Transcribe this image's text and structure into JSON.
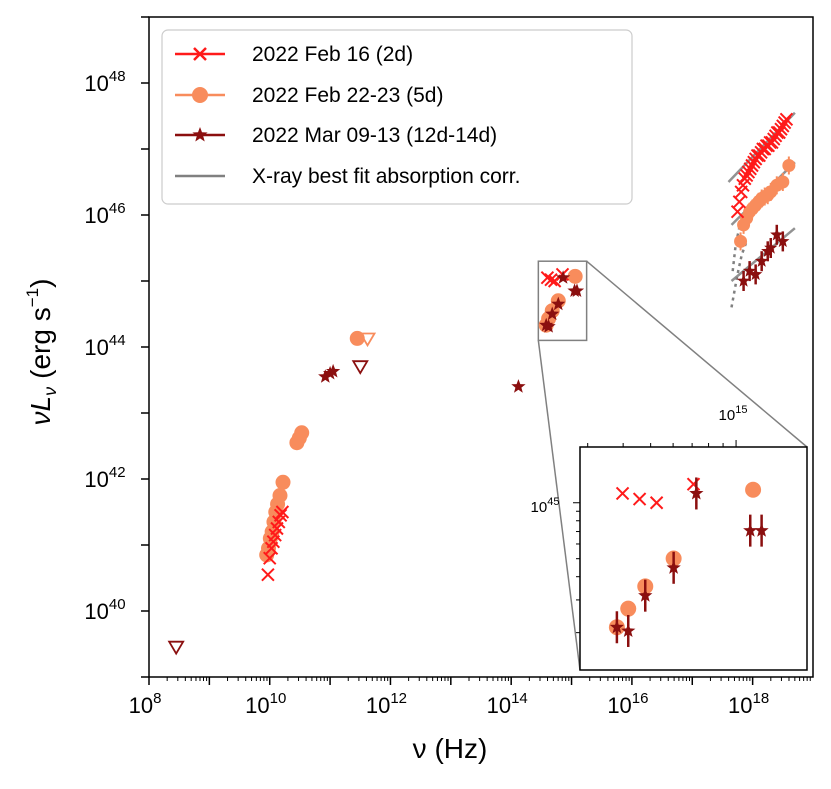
{
  "chart_data": {
    "type": "scatter",
    "xscale": "log",
    "yscale": "log",
    "xlim": [
      100000000.0,
      1e+19
    ],
    "ylim": [
      1e+39,
      1e+49
    ],
    "xlabel": "ν (Hz)",
    "ylabel": "νL",
    "ylabel_sub": "ν",
    "ylabel_units": "(erg s",
    "ylabel_units_exp": "−1",
    "ylabel_units_end": ")",
    "x_ticks": [
      {
        "base": "10",
        "exp": "8",
        "log": 8
      },
      {
        "base": "10",
        "exp": "10",
        "log": 10
      },
      {
        "base": "10",
        "exp": "12",
        "log": 12
      },
      {
        "base": "10",
        "exp": "14",
        "log": 14
      },
      {
        "base": "10",
        "exp": "16",
        "log": 16
      },
      {
        "base": "10",
        "exp": "18",
        "log": 18
      }
    ],
    "y_ticks": [
      {
        "base": "10",
        "exp": "40",
        "log": 40
      },
      {
        "base": "10",
        "exp": "42",
        "log": 42
      },
      {
        "base": "10",
        "exp": "44",
        "log": 44
      },
      {
        "base": "10",
        "exp": "46",
        "log": 46
      },
      {
        "base": "10",
        "exp": "48",
        "log": 48
      }
    ],
    "legend_position": "top-left",
    "series": [
      {
        "name": "2022 Feb 16 (2d)",
        "color": "#ff1a1a",
        "marker": "x",
        "points": [
          [
            9.97,
            40.55
          ],
          [
            10.0,
            40.8
          ],
          [
            10.03,
            40.95
          ],
          [
            10.06,
            41.05
          ],
          [
            10.09,
            41.15
          ],
          [
            10.12,
            41.25
          ],
          [
            10.15,
            41.35
          ],
          [
            10.18,
            41.45
          ],
          [
            10.21,
            41.5
          ],
          [
            14.6,
            45.05
          ],
          [
            14.66,
            45.02
          ],
          [
            14.72,
            45.0
          ],
          [
            14.85,
            45.1
          ]
        ],
        "xray": [
          [
            17.75,
            46.05
          ],
          [
            17.78,
            46.2
          ],
          [
            17.81,
            46.35
          ],
          [
            17.84,
            46.45
          ],
          [
            17.87,
            46.55
          ],
          [
            17.9,
            46.6
          ],
          [
            17.93,
            46.65
          ],
          [
            17.96,
            46.7
          ],
          [
            17.99,
            46.75
          ],
          [
            18.02,
            46.8
          ],
          [
            18.05,
            46.85
          ],
          [
            18.08,
            46.9
          ],
          [
            18.11,
            46.9
          ],
          [
            18.14,
            46.95
          ],
          [
            18.17,
            47.0
          ],
          [
            18.2,
            47.0
          ],
          [
            18.23,
            47.05
          ],
          [
            18.26,
            47.05
          ],
          [
            18.29,
            47.1
          ],
          [
            18.32,
            47.1
          ],
          [
            18.35,
            47.15
          ],
          [
            18.38,
            47.2
          ],
          [
            18.41,
            47.25
          ],
          [
            18.44,
            47.25
          ],
          [
            18.47,
            47.3
          ],
          [
            18.5,
            47.35
          ],
          [
            18.53,
            47.4
          ],
          [
            18.56,
            47.45
          ]
        ]
      },
      {
        "name": "2022 Feb 22-23 (5d)",
        "color": "#f88c5c",
        "marker": "o",
        "points": [
          [
            9.95,
            40.85
          ],
          [
            9.98,
            40.95
          ],
          [
            10.01,
            41.1
          ],
          [
            10.04,
            41.2
          ],
          [
            10.07,
            41.35
          ],
          [
            10.1,
            41.5
          ],
          [
            10.13,
            41.62
          ],
          [
            10.17,
            41.75
          ],
          [
            10.22,
            41.95
          ],
          [
            10.45,
            42.55
          ],
          [
            10.49,
            42.62
          ],
          [
            10.53,
            42.7
          ],
          [
            11.45,
            44.13
          ],
          [
            14.58,
            44.33
          ],
          [
            14.62,
            44.43
          ],
          [
            14.68,
            44.55
          ],
          [
            14.78,
            44.7
          ],
          [
            15.06,
            45.07
          ]
        ],
        "xray": [
          [
            17.8,
            45.6
          ],
          [
            17.85,
            45.85
          ],
          [
            17.9,
            45.95
          ],
          [
            17.95,
            46.05
          ],
          [
            18.0,
            46.1
          ],
          [
            18.05,
            46.15
          ],
          [
            18.1,
            46.2
          ],
          [
            18.15,
            46.25
          ],
          [
            18.2,
            46.28
          ],
          [
            18.25,
            46.3
          ],
          [
            18.3,
            46.35
          ],
          [
            18.4,
            46.45
          ],
          [
            18.5,
            46.5
          ],
          [
            18.6,
            46.75
          ]
        ],
        "upper_limits": [
          [
            11.62,
            44.12
          ]
        ]
      },
      {
        "name": "2022 Mar 09-13 (12d-14d)",
        "color": "#8b0f0f",
        "marker": "*",
        "points": [
          [
            10.92,
            43.55
          ],
          [
            11.0,
            43.6
          ],
          [
            11.05,
            43.63
          ],
          [
            14.12,
            43.4
          ],
          [
            14.58,
            44.33
          ],
          [
            14.62,
            44.31
          ],
          [
            14.68,
            44.5
          ],
          [
            14.78,
            44.65
          ],
          [
            14.86,
            45.05
          ],
          [
            15.05,
            44.85
          ],
          [
            15.09,
            44.85
          ]
        ],
        "xray": [
          [
            17.85,
            45.0
          ],
          [
            17.95,
            45.15
          ],
          [
            18.05,
            45.1
          ],
          [
            18.15,
            45.3
          ],
          [
            18.25,
            45.45
          ],
          [
            18.3,
            45.5
          ],
          [
            18.4,
            45.7
          ],
          [
            18.5,
            45.6
          ]
        ],
        "upper_limits": [
          [
            11.5,
            43.7
          ],
          [
            8.45,
            39.45
          ]
        ]
      },
      {
        "name": "X-ray best fit absorption corr.",
        "color": "#808080",
        "marker": "line",
        "fits": [
          [
            [
              17.6,
              46.5
            ],
            [
              18.7,
              47.55
            ]
          ],
          [
            [
              17.65,
              45.85
            ],
            [
              18.7,
              46.8
            ]
          ],
          [
            [
              17.65,
              45.0
            ],
            [
              18.7,
              45.8
            ]
          ]
        ],
        "absorbed": [
          [
            [
              17.67,
              45.15
            ],
            [
              17.72,
              45.55
            ],
            [
              17.8,
              45.9
            ],
            [
              17.9,
              46.05
            ],
            [
              18.0,
              46.15
            ]
          ],
          [
            [
              17.65,
              44.6
            ],
            [
              17.7,
              44.85
            ],
            [
              17.75,
              45.1
            ],
            [
              17.82,
              45.4
            ],
            [
              17.9,
              45.6
            ]
          ]
        ]
      }
    ],
    "zoom_box_x": [
      14.45,
      15.25
    ],
    "zoom_box_y": [
      44.1,
      45.3
    ],
    "inset": {
      "xlim": [
        14.45,
        15.25
      ],
      "ylim": [
        44.1,
        45.3
      ],
      "x_tick": {
        "base": "10",
        "exp": "15",
        "log": 15
      },
      "y_tick": {
        "base": "10",
        "exp": "45",
        "log": 45
      }
    }
  }
}
